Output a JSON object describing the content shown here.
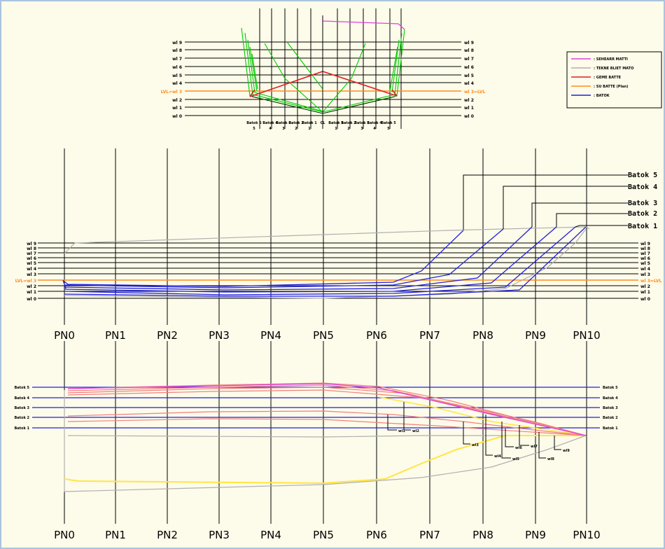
{
  "stations": [
    "PN0",
    "PN1",
    "PN2",
    "PN3",
    "PN4",
    "PN5",
    "PN6",
    "PN7",
    "PN8",
    "PN9",
    "PN10"
  ],
  "body_plan": {
    "wl_labels_left": [
      "wl 9",
      "wl 8",
      "wl 7",
      "wl 6",
      "wl 5",
      "wl 4",
      "LVL=wl 3",
      "wl 2",
      "wl 1",
      "wl 0"
    ],
    "wl_labels_right": [
      "wl 9",
      "wl 8",
      "wl 7",
      "wl 6",
      "wl 5",
      "wl 4",
      "wl 3=LVL",
      "wl 2",
      "wl 1",
      "wl 0"
    ],
    "bottom_labels": [
      "Batok 5",
      "Batok 4",
      "Batok 3",
      "Batok 2",
      "Batok 1",
      "CL",
      "Batok 1",
      "Batok 2",
      "Batok 3",
      "Batok 4",
      "Batok 5"
    ],
    "bottom_numbers": [
      "5",
      "4",
      "3",
      "2",
      "1",
      "",
      "1",
      "2",
      "3",
      "4",
      "5"
    ]
  },
  "legend": {
    "items": [
      {
        "label": ": SEHEARR MATTI",
        "color": "#e040e0"
      },
      {
        "label": ": TEKNE BLIET MATO",
        "color": "#b0b0b0"
      },
      {
        "label": ": GEME BATTE",
        "color": "#e02020"
      },
      {
        "label": ": SU BATTE (Plan)",
        "color": "#ff8c1a"
      },
      {
        "label": ": BATOK",
        "color": "#2020e0"
      }
    ]
  },
  "profile": {
    "wl_labels_left": [
      "wl 9",
      "wl 8",
      "wl 7",
      "wl 6",
      "wl 5",
      "wl 4",
      "wl 3",
      "LVL=wl 3",
      "wl 2",
      "wl 1",
      "wl 0"
    ],
    "wl_labels_right": [
      "wl 9",
      "wl 8",
      "wl 7",
      "wl 6",
      "wl 5",
      "wl 4",
      "wl 3",
      "wl 3=LVL",
      "wl 2",
      "wl 1",
      "wl 0"
    ],
    "buttock_callouts": [
      "Batok 5",
      "Batok 4",
      "Batok 3",
      "Batok 2",
      "Batok 1"
    ]
  },
  "plan": {
    "labels_left": [
      "Batok 5",
      "Batok 4",
      "Batok 3",
      "Batok 2",
      "Batok 1"
    ],
    "labels_right": [
      "Batok 5",
      "Batok 4",
      "Batok 3",
      "Batok 2",
      "Batok 1"
    ],
    "waterline_tags": [
      "wl1",
      "wl2",
      "wl3",
      "wl4",
      "wl5",
      "wl6",
      "wl7",
      "wl8",
      "wl9"
    ]
  },
  "colors": {
    "background": "#fdfbea",
    "buttock": "#2020e0",
    "lvl": "#ff8c1a",
    "hull_outline": "#b0b0b0",
    "section": "#00cc00",
    "deck": "#e040e0",
    "chine": "#e02020",
    "waterline_plan": "#f08080",
    "yellow": "#ffe640"
  }
}
